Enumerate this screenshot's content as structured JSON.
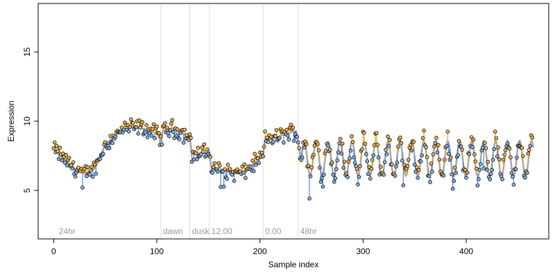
{
  "chart_data": {
    "type": "scatter",
    "xlabel": "Sample index",
    "ylabel": "Expression",
    "xlim": [
      -15,
      480
    ],
    "ylim": [
      1.5,
      18.5
    ],
    "x_ticks": [
      0,
      100,
      200,
      300,
      400
    ],
    "y_ticks": [
      5,
      10,
      15
    ],
    "grid": false,
    "legend": "none",
    "annotations": [
      {
        "label": "24hr",
        "x": 3,
        "line": false
      },
      {
        "label": "dawn",
        "x": 104,
        "line": true
      },
      {
        "label": "dusk",
        "x": 132,
        "line": true
      },
      {
        "label": "12:00",
        "x": 151,
        "line": true
      },
      {
        "label": "0:00",
        "x": 203,
        "line": true
      },
      {
        "label": "48hr",
        "x": 237,
        "line": true
      }
    ],
    "colors": {
      "fitted_line": "#a8a8a8",
      "residual_above": "#f5a623",
      "residual_below": "#4a86d8",
      "point_above": "#f5b553",
      "point_below": "#8fb5e8",
      "point_edge": "#000000",
      "annotation_line": "#dddddd"
    },
    "series": [
      {
        "type": "line",
        "values": [
          [
            0,
            8.0
          ],
          [
            10,
            7.3
          ],
          [
            20,
            6.6
          ],
          [
            30,
            6.2
          ],
          [
            40,
            6.6
          ],
          [
            50,
            8.3
          ],
          [
            60,
            9.0
          ],
          [
            70,
            9.5
          ],
          [
            80,
            9.6
          ],
          [
            90,
            9.4
          ],
          [
            100,
            9.1
          ],
          [
            104,
            8.6
          ],
          [
            106,
            9.3
          ],
          [
            115,
            9.5
          ],
          [
            125,
            9.1
          ],
          [
            132,
            8.9
          ],
          [
            134,
            7.6
          ],
          [
            145,
            7.7
          ],
          [
            151,
            7.8
          ],
          [
            153,
            6.6
          ],
          [
            165,
            6.5
          ],
          [
            175,
            6.2
          ],
          [
            185,
            6.3
          ],
          [
            195,
            7.0
          ],
          [
            203,
            7.5
          ],
          [
            205,
            8.7
          ],
          [
            215,
            8.8
          ],
          [
            225,
            9.1
          ],
          [
            235,
            9.3
          ],
          [
            237,
            8.5
          ],
          [
            240,
            7.1
          ]
        ]
      },
      {
        "type": "oscillation",
        "x_start": 240,
        "x_end": 465,
        "period": 11.6,
        "mean": 7.3,
        "amplitude_start": 1.2,
        "amplitude_end": 1.3
      }
    ],
    "n_points": 465
  }
}
